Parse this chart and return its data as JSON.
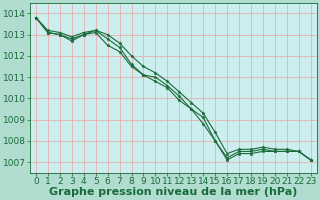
{
  "bg_color": "#b0ddd0",
  "plot_bg_color": "#cceeee",
  "grid_color": "#e8b0b0",
  "line_color": "#1a6b3a",
  "title": "Graphe pression niveau de la mer (hPa)",
  "ylabel_ticks": [
    1007,
    1008,
    1009,
    1010,
    1011,
    1012,
    1013,
    1014
  ],
  "xlim": [
    -0.5,
    23.5
  ],
  "ylim": [
    1006.5,
    1014.5
  ],
  "xticks": [
    0,
    1,
    2,
    3,
    4,
    5,
    6,
    7,
    8,
    9,
    10,
    11,
    12,
    13,
    14,
    15,
    16,
    17,
    18,
    19,
    20,
    21,
    22,
    23
  ],
  "series": [
    [
      1013.8,
      1013.1,
      1013.0,
      1012.8,
      1013.0,
      1013.2,
      1012.8,
      1012.4,
      1011.6,
      1011.1,
      1011.0,
      1010.6,
      1010.1,
      1009.5,
      1009.1,
      1008.0,
      1007.2,
      1007.5,
      1007.5,
      1007.6,
      1007.5,
      1007.5,
      1007.5,
      1007.1
    ],
    [
      1013.8,
      1013.1,
      1013.0,
      1012.7,
      1013.0,
      1013.1,
      1012.5,
      1012.2,
      1011.5,
      1011.1,
      1010.8,
      1010.5,
      1009.9,
      1009.5,
      1008.8,
      1008.0,
      1007.1,
      1007.4,
      1007.4,
      1007.5,
      1007.5,
      1007.5,
      1007.5,
      1007.1
    ],
    [
      1013.8,
      1013.2,
      1013.1,
      1012.9,
      1013.1,
      1013.2,
      1013.0,
      1012.6,
      1012.0,
      1011.5,
      1011.2,
      1010.8,
      1010.3,
      1009.8,
      1009.3,
      1008.4,
      1007.4,
      1007.6,
      1007.6,
      1007.7,
      1007.6,
      1007.6,
      1007.5,
      1007.1
    ]
  ],
  "title_fontsize": 8,
  "tick_fontsize": 6.5,
  "marker_size": 2.5,
  "linewidth": 0.8
}
